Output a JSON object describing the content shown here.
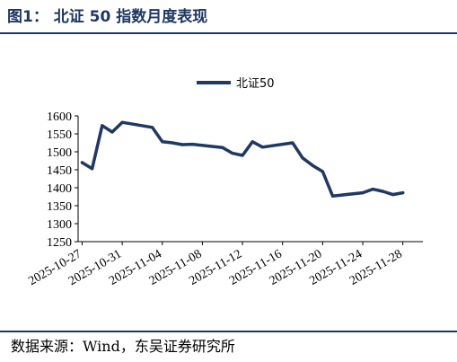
{
  "header": {
    "title": "图1：  北证 50 指数月度表现"
  },
  "footer": {
    "source": "数据来源：Wind，东吴证券研究所"
  },
  "chart_data": {
    "type": "line",
    "title": "",
    "xlabel": "",
    "ylabel": "",
    "ylim": [
      1250,
      1600
    ],
    "yticks": [
      1250,
      1300,
      1350,
      1400,
      1450,
      1500,
      1550,
      1600
    ],
    "xtick_labels": [
      "2025-10-27",
      "2025-10-31",
      "2025-11-04",
      "2025-11-08",
      "2025-11-12",
      "2025-11-16",
      "2025-11-20",
      "2025-11-24",
      "2025-11-28"
    ],
    "grid": false,
    "legend_position": "top-center",
    "line_color": "#1f3864",
    "series": [
      {
        "name": "北证50",
        "x": [
          "2025-10-27",
          "2025-10-28",
          "2025-10-29",
          "2025-10-30",
          "2025-10-31",
          "2025-11-03",
          "2025-11-04",
          "2025-11-05",
          "2025-11-06",
          "2025-11-07",
          "2025-11-10",
          "2025-11-11",
          "2025-11-12",
          "2025-11-13",
          "2025-11-14",
          "2025-11-17",
          "2025-11-18",
          "2025-11-19",
          "2025-11-20",
          "2025-11-21",
          "2025-11-24",
          "2025-11-25",
          "2025-11-26",
          "2025-11-27",
          "2025-11-28"
        ],
        "values": [
          1470,
          1453,
          1573,
          1555,
          1582,
          1568,
          1528,
          1525,
          1520,
          1521,
          1512,
          1496,
          1490,
          1528,
          1513,
          1525,
          1483,
          1462,
          1445,
          1377,
          1386,
          1396,
          1390,
          1381,
          1386
        ]
      }
    ]
  }
}
